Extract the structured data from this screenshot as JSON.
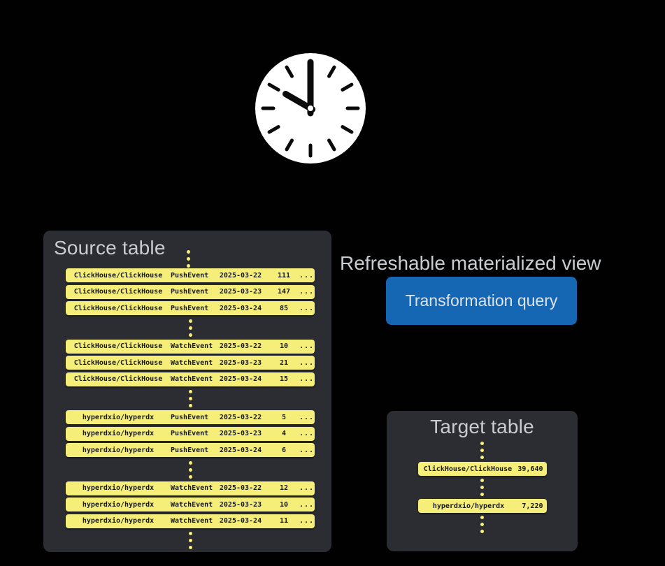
{
  "colors": {
    "background": "#010101",
    "panel": "#2b2d33",
    "row_yellow": "#f5ee79",
    "row_text": "#17181c",
    "title_text": "#c9ccd1",
    "button_blue": "#1567b4",
    "button_text": "#dde3e9",
    "clock_face": "#ffffff",
    "clock_hands": "#0a0a0a"
  },
  "clock": {
    "time": "10:00"
  },
  "source_table": {
    "title": "Source table",
    "groups": [
      [
        [
          "ClickHouse/ClickHouse",
          "PushEvent",
          "2025-03-22",
          "111",
          "..."
        ],
        [
          "ClickHouse/ClickHouse",
          "PushEvent",
          "2025-03-23",
          "147",
          "..."
        ],
        [
          "ClickHouse/ClickHouse",
          "PushEvent",
          "2025-03-24",
          "85",
          "..."
        ]
      ],
      [
        [
          "ClickHouse/ClickHouse",
          "WatchEvent",
          "2025-03-22",
          "10",
          "..."
        ],
        [
          "ClickHouse/ClickHouse",
          "WatchEvent",
          "2025-03-23",
          "21",
          "..."
        ],
        [
          "ClickHouse/ClickHouse",
          "WatchEvent",
          "2025-03-24",
          "15",
          "..."
        ]
      ],
      [
        [
          "hyperdxio/hyperdx",
          "PushEvent",
          "2025-03-22",
          "5",
          "..."
        ],
        [
          "hyperdxio/hyperdx",
          "PushEvent",
          "2025-03-23",
          "4",
          "..."
        ],
        [
          "hyperdxio/hyperdx",
          "PushEvent",
          "2025-03-24",
          "6",
          "..."
        ]
      ],
      [
        [
          "hyperdxio/hyperdx",
          "WatchEvent",
          "2025-03-22",
          "12",
          "..."
        ],
        [
          "hyperdxio/hyperdx",
          "WatchEvent",
          "2025-03-23",
          "10",
          "..."
        ],
        [
          "hyperdxio/hyperdx",
          "WatchEvent",
          "2025-03-24",
          "11",
          "..."
        ]
      ]
    ]
  },
  "materialized_view": {
    "label": "Refreshable materialized view",
    "button_label": "Transformation query"
  },
  "target_table": {
    "title": "Target table",
    "rows": [
      [
        "ClickHouse/ClickHouse",
        "39,640"
      ],
      [
        "hyperdxio/hyperdx",
        "7,220"
      ]
    ]
  }
}
